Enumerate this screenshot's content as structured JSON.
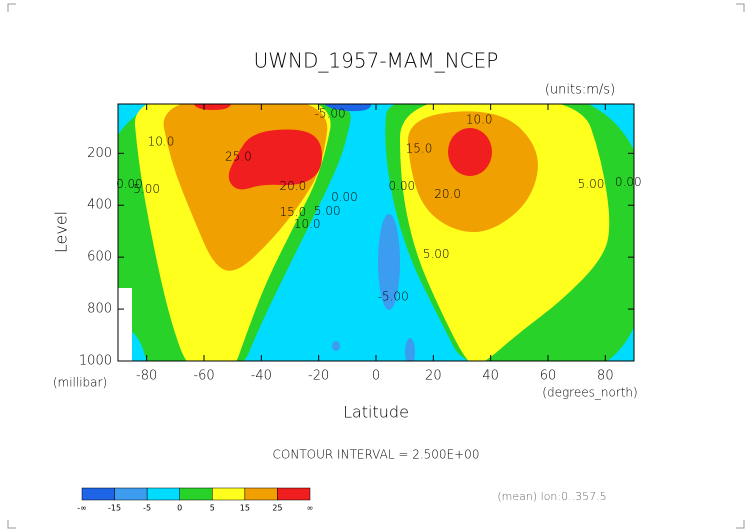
{
  "chart_data": {
    "type": "contour",
    "title": "UWND_1957-MAM_NCEP",
    "subtitle": "(units:m/s)",
    "x_label": "Latitude",
    "x_units": "(degrees_north)",
    "y_label": "Level",
    "y_units": "(millibar)",
    "xlim": [
      -90,
      90
    ],
    "xticks": [
      -80,
      -60,
      -40,
      -20,
      0,
      20,
      40,
      60,
      80
    ],
    "ylim": [
      1000,
      10
    ],
    "yticks": [
      200,
      400,
      600,
      800,
      1000
    ],
    "annotation": "CONTOUR INTERVAL = 2.500E+00",
    "footnote": "(mean) lon:0..357.5",
    "colorbar": {
      "ticks": [
        "-∞",
        -15,
        -5,
        0,
        5,
        15,
        25,
        "∞"
      ],
      "colors": [
        "#1e64e6",
        "#3c9cf0",
        "#00dcff",
        "#28d228",
        "#ffff1e",
        "#f0a000",
        "#f01e1e"
      ]
    },
    "contour_labels": [
      {
        "lat": -75,
        "level": 157,
        "value": 10,
        "label": "10.0"
      },
      {
        "lat": -80,
        "level": 339,
        "value": 5,
        "label": "5.00"
      },
      {
        "lat": -86,
        "level": 320,
        "value": 0,
        "label": "0.00"
      },
      {
        "lat": -48,
        "level": 215,
        "value": 25,
        "label": "25.0"
      },
      {
        "lat": -29,
        "level": 327,
        "value": 20,
        "label": "20.0"
      },
      {
        "lat": -29,
        "level": 428,
        "value": 15,
        "label": "15.0"
      },
      {
        "lat": -24,
        "level": 474,
        "value": 10,
        "label": "10.0"
      },
      {
        "lat": -17,
        "level": 424,
        "value": 5,
        "label": "5.00"
      },
      {
        "lat": -11,
        "level": 370,
        "value": 0,
        "label": "0.00"
      },
      {
        "lat": -16,
        "level": 49,
        "value": -5,
        "label": "-5.00"
      },
      {
        "lat": 36,
        "level": 72,
        "value": 10,
        "label": "10.0"
      },
      {
        "lat": 15,
        "level": 184,
        "value": 15,
        "label": "15.0"
      },
      {
        "lat": 25,
        "level": 358,
        "value": 20,
        "label": "20.0"
      },
      {
        "lat": 9,
        "level": 327,
        "value": 0,
        "label": "0.00"
      },
      {
        "lat": 21,
        "level": 590,
        "value": 5,
        "label": "5.00"
      },
      {
        "lat": 6,
        "level": 753,
        "value": -5,
        "label": "-5.00"
      },
      {
        "lat": 75,
        "level": 320,
        "value": 5,
        "label": "5.00"
      },
      {
        "lat": 88,
        "level": 312,
        "value": 0,
        "label": "0.00"
      }
    ]
  }
}
